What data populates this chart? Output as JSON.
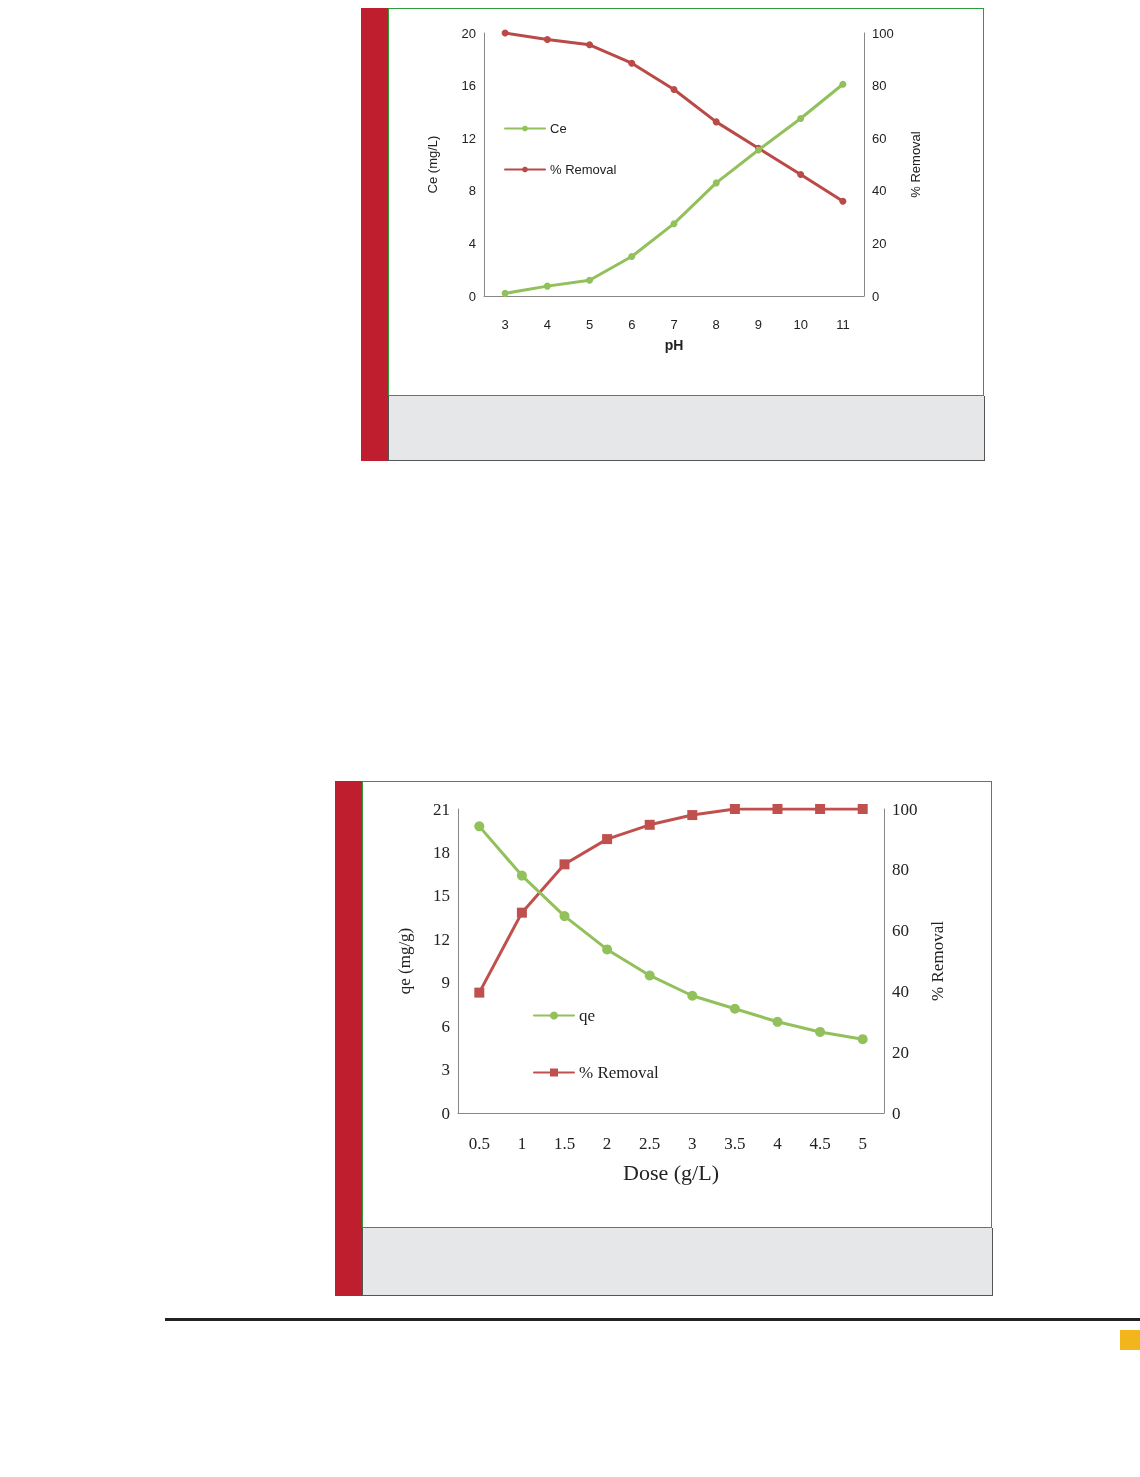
{
  "chart_data": [
    {
      "type": "line",
      "xlabel": "pH",
      "ylabel": "Ce (mg/L)",
      "y2label": "% Removal",
      "categories": [
        "3",
        "4",
        "5",
        "6",
        "7",
        "8",
        "9",
        "10",
        "11"
      ],
      "series": [
        {
          "name": "Ce",
          "color": "#92c05a",
          "values": [
            0.2,
            0.75,
            1.2,
            3.0,
            5.5,
            8.6,
            11.1,
            13.5,
            16.1
          ]
        },
        {
          "name": "% Removal",
          "color": "#b94a48",
          "axis": "y2",
          "values": [
            100,
            97.5,
            95.5,
            88.5,
            78.5,
            66.2,
            56.2,
            46.2,
            36
          ]
        }
      ],
      "ylim": [
        0,
        20
      ],
      "yticks": [
        0,
        4,
        8,
        12,
        16,
        20
      ],
      "y2lim": [
        0,
        100
      ],
      "y2ticks": [
        0,
        20,
        40,
        60,
        80,
        100
      ],
      "grid": false,
      "legend": "left",
      "marker": "circle",
      "line_style": "solid"
    },
    {
      "type": "line",
      "xlabel": "Dose (g/L)",
      "ylabel": "qe (mg/g)",
      "y2label": "% Removal",
      "categories": [
        "0.5",
        "1",
        "1.5",
        "2",
        "2.5",
        "3",
        "3.5",
        "4",
        "4.5",
        "5"
      ],
      "series": [
        {
          "name": "qe",
          "color": "#92c05a",
          "marker": "circle",
          "values": [
            19.8,
            16.4,
            13.6,
            11.3,
            9.5,
            8.1,
            7.2,
            6.3,
            5.6,
            5.1
          ]
        },
        {
          "name": "% Removal",
          "color": "#c0504d",
          "marker": "square",
          "axis": "y2",
          "values": [
            39.6,
            65.9,
            81.8,
            90.1,
            94.8,
            98,
            100,
            100,
            100,
            100
          ]
        }
      ],
      "ylim": [
        0,
        21
      ],
      "yticks": [
        0,
        3,
        6,
        9,
        12,
        15,
        18,
        21
      ],
      "y2lim": [
        0,
        100
      ],
      "y2ticks": [
        0,
        20,
        40,
        60,
        80,
        100
      ],
      "grid": false,
      "legend": "bottom left",
      "line_style": "solid"
    }
  ]
}
